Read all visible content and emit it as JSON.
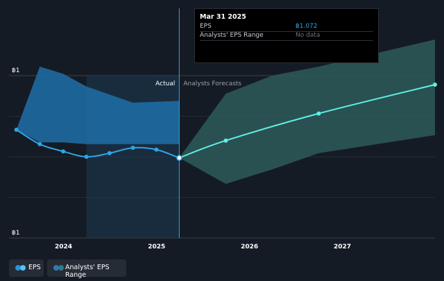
{
  "tooltip": {
    "date": "Mar 31 2025",
    "rows": [
      {
        "label": "EPS",
        "value": "฿1.072",
        "color": "#2fa5e8"
      },
      {
        "label": "Analysts' EPS Range",
        "value": "No data",
        "color": "#6f747c"
      }
    ]
  },
  "legend": {
    "items": [
      {
        "label": "EPS",
        "color": "#4fc3f7"
      },
      {
        "label": "Analysts' EPS Range",
        "color": "#2d7a8c"
      }
    ]
  },
  "colors": {
    "background": "#151b24",
    "eps_line": "#2fa5e8",
    "forecast_line": "#5ef0e6",
    "eps_band": "#1f6fa8",
    "forecast_band": "#2e5b5a",
    "highlight": "#1c3850"
  },
  "chart_data": {
    "type": "line",
    "y_tick_labels": [
      "฿1",
      "฿1"
    ],
    "x_tick_labels": [
      "2024",
      "2025",
      "2026",
      "2027"
    ],
    "annotations": {
      "actual": "Actual",
      "forecast": "Analysts Forecasts"
    },
    "x_range": [
      "2023-06-01",
      "2027-12-31"
    ],
    "y_range": [
      0.85,
      1.3
    ],
    "grid": true,
    "legend_position": "bottom-left",
    "divider_date": "2025-03-31",
    "highlight_start": "2024-03-31",
    "series": [
      {
        "name": "EPS",
        "points": [
          {
            "x": "2023-06-30",
            "y": 1.15
          },
          {
            "x": "2023-09-30",
            "y": 1.11
          },
          {
            "x": "2023-12-31",
            "y": 1.09
          },
          {
            "x": "2024-03-31",
            "y": 1.075
          },
          {
            "x": "2024-06-30",
            "y": 1.085
          },
          {
            "x": "2024-09-30",
            "y": 1.1
          },
          {
            "x": "2024-12-31",
            "y": 1.095
          },
          {
            "x": "2025-03-31",
            "y": 1.072
          }
        ]
      },
      {
        "name": "Analysts Forecasts",
        "points": [
          {
            "x": "2025-03-31",
            "y": 1.072
          },
          {
            "x": "2025-09-30",
            "y": 1.12
          },
          {
            "x": "2026-09-30",
            "y": 1.195
          },
          {
            "x": "2027-12-31",
            "y": 1.275
          }
        ]
      }
    ],
    "bands": [
      {
        "name": "EPS range",
        "points": [
          {
            "x": "2023-06-30",
            "high": 1.15,
            "low": 1.15
          },
          {
            "x": "2023-09-30",
            "high": 1.325,
            "low": 1.115
          },
          {
            "x": "2023-12-31",
            "high": 1.305,
            "low": 1.115
          },
          {
            "x": "2024-03-31",
            "high": 1.27,
            "low": 1.11
          },
          {
            "x": "2024-09-30",
            "high": 1.225,
            "low": 1.11
          },
          {
            "x": "2025-03-31",
            "high": 1.23,
            "low": 1.11
          }
        ]
      },
      {
        "name": "Analysts' EPS Range",
        "points": [
          {
            "x": "2025-03-31",
            "high": 1.072,
            "low": 1.072
          },
          {
            "x": "2025-09-30",
            "high": 1.25,
            "low": 1.0
          },
          {
            "x": "2026-03-31",
            "high": 1.3,
            "low": 1.04
          },
          {
            "x": "2026-09-30",
            "high": 1.325,
            "low": 1.085
          },
          {
            "x": "2027-12-31",
            "high": 1.4,
            "low": 1.135
          }
        ]
      }
    ]
  }
}
